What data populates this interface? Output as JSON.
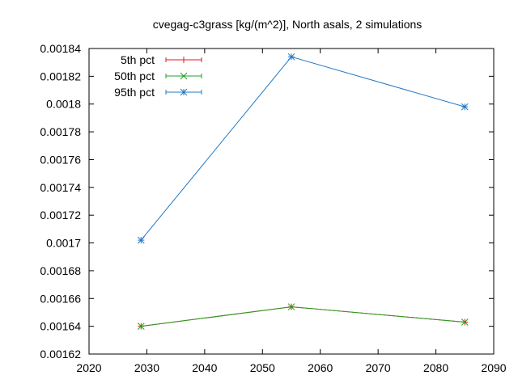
{
  "chart_data": {
    "type": "line",
    "title": "cvegag-c3grass [kg/(m^2)], North asals, 2 simulations",
    "xlabel": "",
    "ylabel": "",
    "xlim": [
      2020,
      2090
    ],
    "ylim": [
      0.00162,
      0.00184
    ],
    "x_ticks": [
      2020,
      2030,
      2040,
      2050,
      2060,
      2070,
      2080,
      2090
    ],
    "y_ticks": [
      0.00162,
      0.00164,
      0.00166,
      0.00168,
      0.0017,
      0.00172,
      0.00174,
      0.00176,
      0.00178,
      0.0018,
      0.00182,
      0.00184
    ],
    "y_tick_labels": [
      "0.00162",
      "0.00164",
      "0.00166",
      "0.00168",
      "0.0017",
      "0.00172",
      "0.00174",
      "0.00176",
      "0.00178",
      "0.0018",
      "0.00182",
      "0.00184"
    ],
    "grid": false,
    "legend_position": "top-left",
    "x": [
      2029,
      2055,
      2085
    ],
    "series": [
      {
        "name": "5th pct",
        "color": "#e41a1c",
        "marker": "plus",
        "values": [
          0.00164,
          0.001654,
          0.001643
        ]
      },
      {
        "name": "50th pct",
        "color": "#21a121",
        "marker": "cross",
        "values": [
          0.00164,
          0.001654,
          0.001643
        ]
      },
      {
        "name": "95th pct",
        "color": "#1f78c8",
        "marker": "star",
        "values": [
          0.001702,
          0.001834,
          0.001798
        ]
      }
    ]
  }
}
